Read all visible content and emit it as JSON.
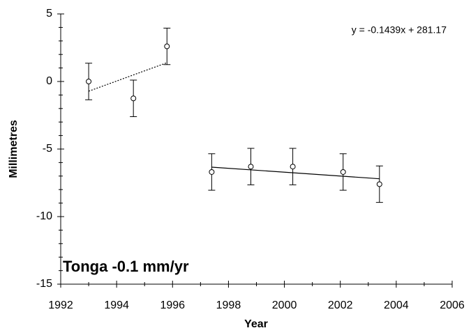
{
  "chart_data": {
    "type": "scatter",
    "xlabel": "Year",
    "ylabel": "Millimetres",
    "annotation": "y = -0.1439x + 281.17",
    "label": "Tonga -0.1 mm/yr",
    "xlim": [
      1992,
      2006
    ],
    "ylim": [
      -15,
      5
    ],
    "xticks": [
      1992,
      1994,
      1996,
      1998,
      2000,
      2002,
      2004,
      2006
    ],
    "xminorticks": [
      1993,
      1995,
      1997,
      1999,
      2001,
      2003,
      2005
    ],
    "yticks": [
      -15,
      -10,
      -5,
      0,
      5
    ],
    "yminorticks": [
      -14,
      -13,
      -12,
      -11,
      -9,
      -8,
      -7,
      -6,
      -4,
      -3,
      -2,
      -1,
      1,
      2,
      3,
      4
    ],
    "color": "#000000",
    "x": [
      1993.0,
      1994.6,
      1995.8,
      1997.4,
      1998.8,
      2000.3,
      2002.1,
      2003.4
    ],
    "values": [
      0.0,
      -1.25,
      2.6,
      -6.7,
      -6.3,
      -6.3,
      -6.7,
      -7.6
    ],
    "errors": [
      1.35,
      1.35,
      1.35,
      1.35,
      1.35,
      1.35,
      1.35,
      1.35
    ],
    "trendlines": [
      {
        "style": "dotted",
        "x": [
          1993.0,
          1995.8
        ],
        "y": [
          -0.72,
          1.39
        ]
      },
      {
        "style": "solid",
        "x": [
          1997.4,
          2003.4
        ],
        "y": [
          -6.34,
          -7.2
        ]
      }
    ]
  }
}
